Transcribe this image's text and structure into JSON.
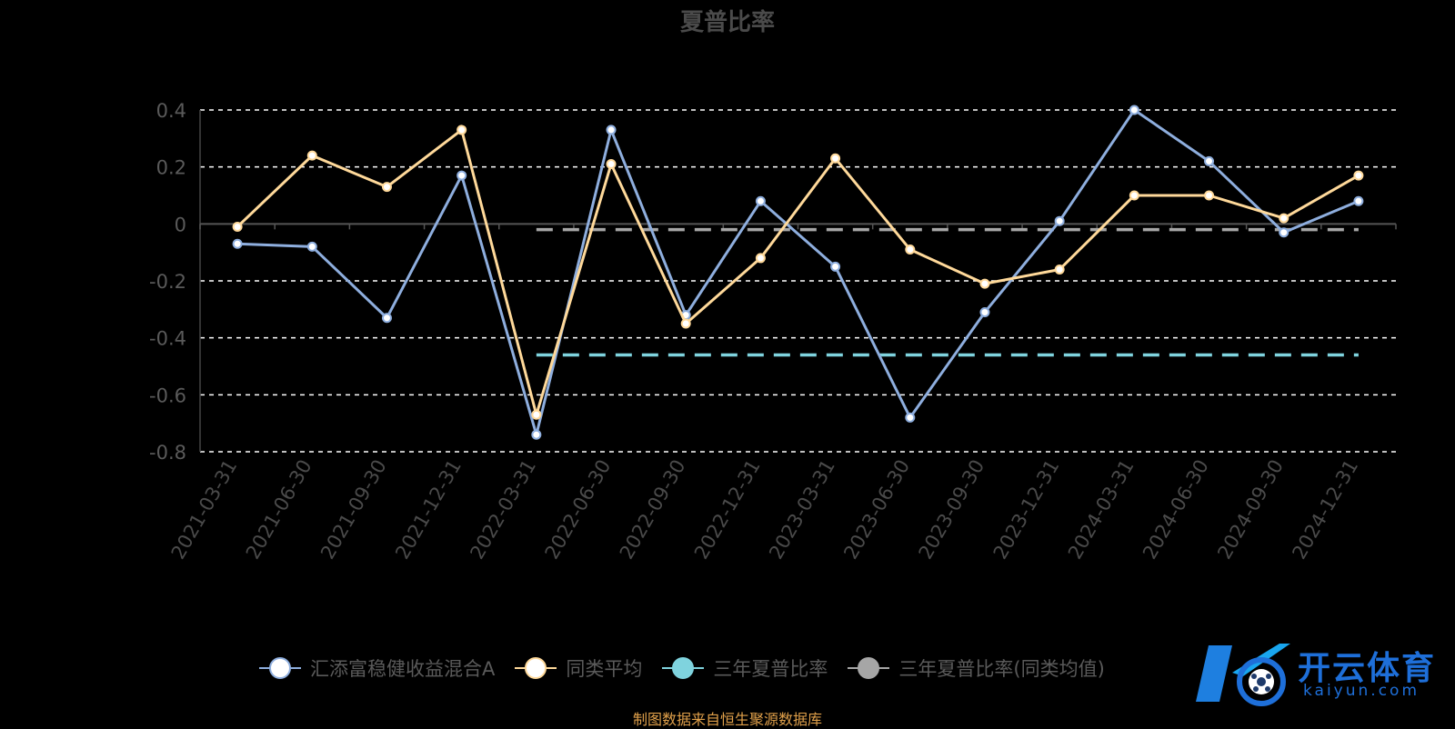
{
  "chart_data": {
    "type": "line",
    "title": "夏普比率",
    "categories": [
      "2021-03-31",
      "2021-06-30",
      "2021-09-30",
      "2021-12-31",
      "2022-03-31",
      "2022-06-30",
      "2022-09-30",
      "2022-12-31",
      "2023-03-31",
      "2023-06-30",
      "2023-09-30",
      "2023-12-31",
      "2024-03-31",
      "2024-06-30",
      "2024-09-30",
      "2024-12-31"
    ],
    "ylim": [
      -0.8,
      0.4
    ],
    "yticks": [
      "0.4",
      "0.2",
      "0",
      "-0.2",
      "-0.4",
      "-0.6",
      "-0.8"
    ],
    "series": [
      {
        "name": "汇添富稳健收益混合A",
        "color": "#8eaede",
        "values": [
          -0.07,
          -0.08,
          -0.33,
          0.17,
          -0.74,
          0.33,
          -0.32,
          0.08,
          -0.15,
          -0.68,
          -0.31,
          0.01,
          0.4,
          0.22,
          -0.03,
          0.08
        ]
      },
      {
        "name": "同类平均",
        "color": "#ffd99a",
        "values": [
          -0.01,
          0.24,
          0.13,
          0.33,
          -0.67,
          0.21,
          -0.35,
          -0.12,
          0.23,
          -0.09,
          -0.21,
          -0.16,
          0.1,
          0.1,
          0.02,
          0.17
        ]
      },
      {
        "name": "三年夏普比率",
        "color": "#7fd3de",
        "type": "reference",
        "value": -0.46,
        "from": "2022-03-31",
        "to": "2024-12-31"
      },
      {
        "name": "三年夏普比率(同类均值)",
        "color": "#a6a6a6",
        "type": "reference",
        "value": -0.02,
        "from": "2022-03-31",
        "to": "2024-12-31"
      }
    ],
    "grid": true,
    "legend_position": "bottom"
  },
  "source_note": "制图数据来自恒生聚源数据库",
  "watermark": {
    "brand": "开云体育",
    "domain": "kaiyun.com"
  }
}
